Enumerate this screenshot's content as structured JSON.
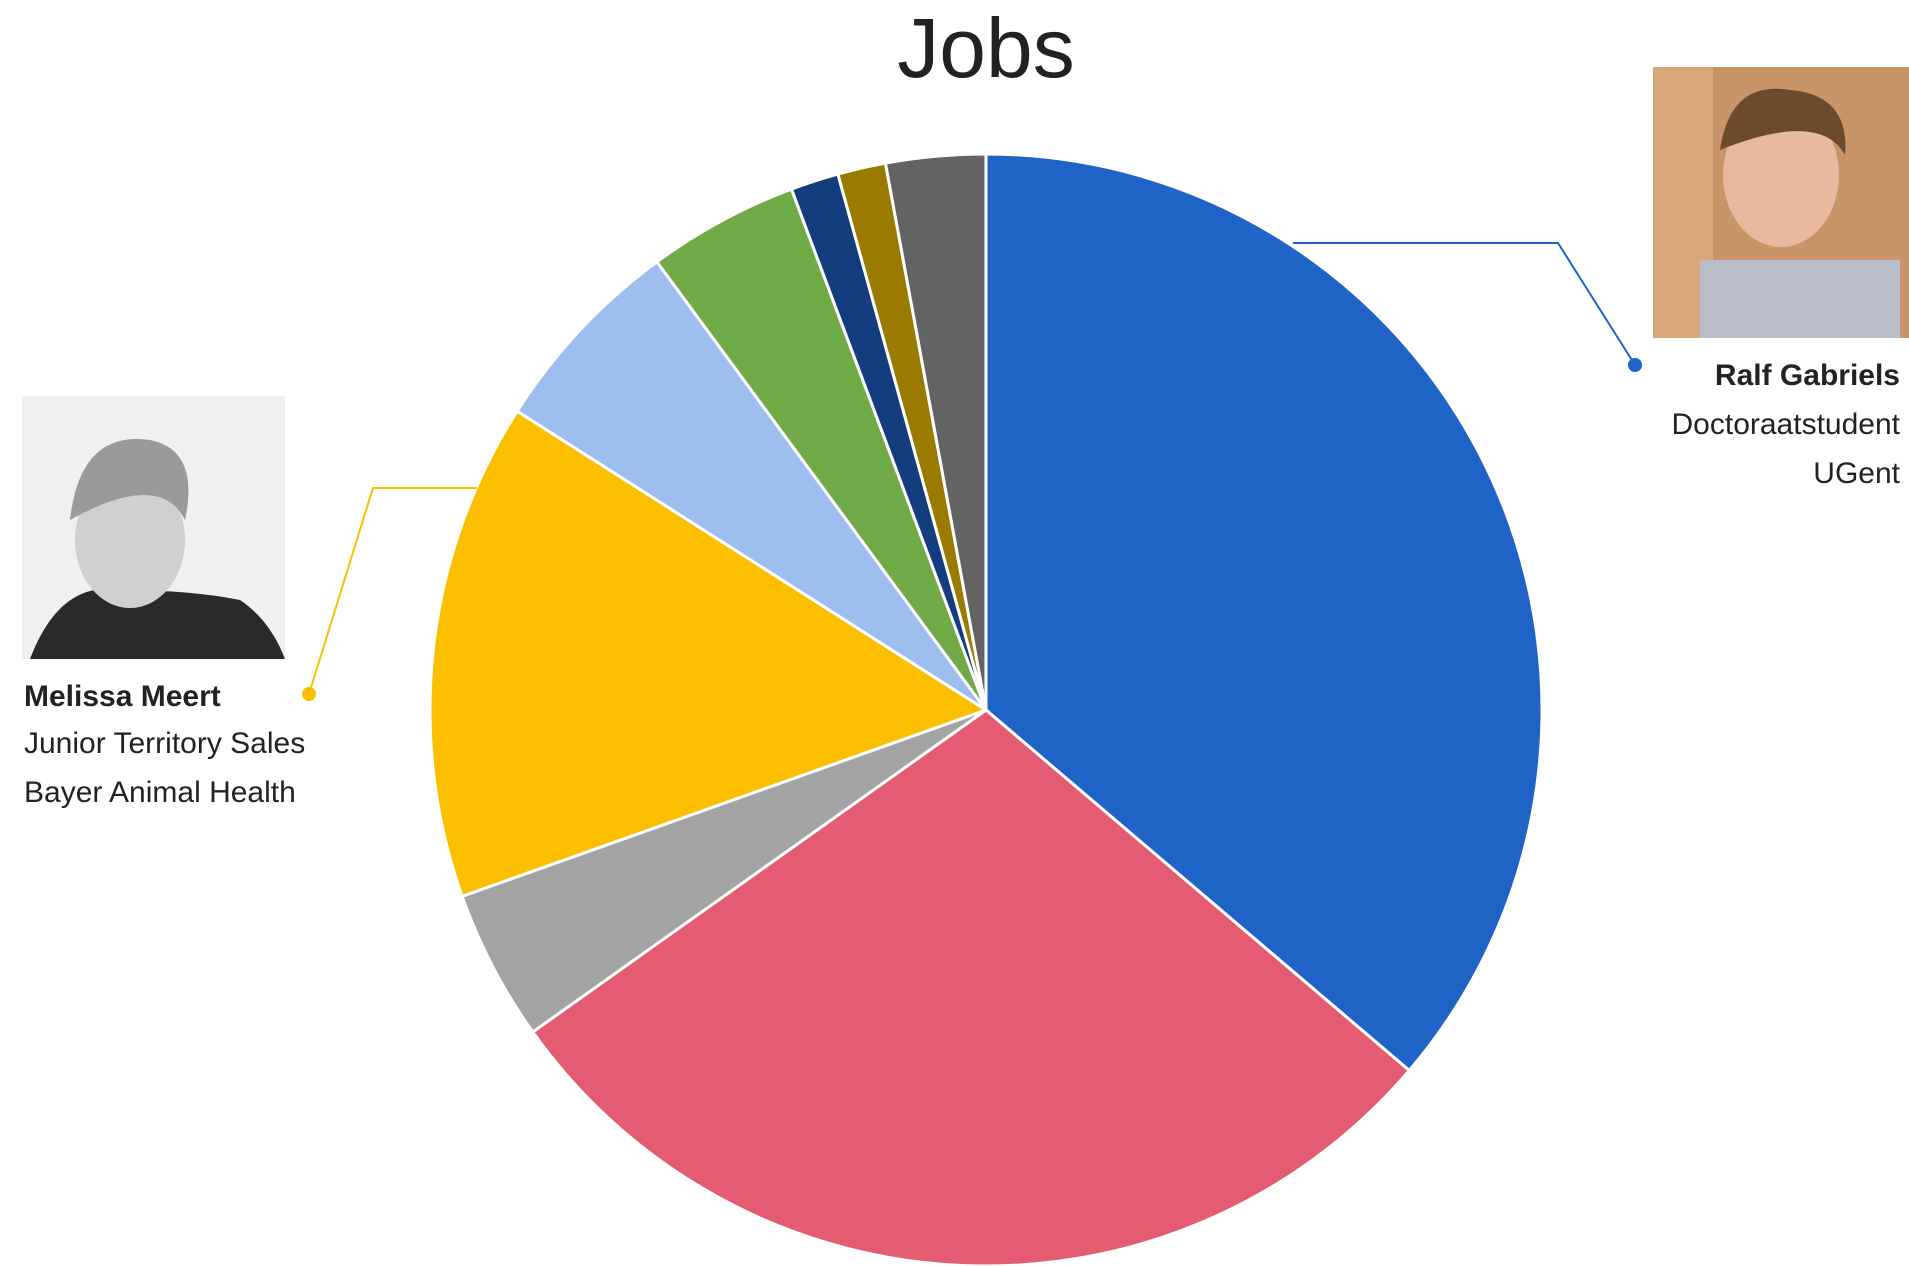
{
  "chart_data": {
    "type": "pie",
    "title": "Jobs",
    "values": [
      36.3,
      29,
      4.4,
      14.5,
      5.9,
      4.4,
      1.4,
      1.4,
      2.9
    ],
    "colors": [
      "#1f63c6",
      "#e45c72",
      "#a3a3a3",
      "#fbbf00",
      "#9dbdee",
      "#70aa47",
      "#133d7c",
      "#9b7a00",
      "#636363"
    ],
    "annotations": [
      {
        "name": "Ralf Gabriels",
        "role": "Doctoraatstudent",
        "organisation": "UGent",
        "color": "#1f63c6"
      },
      {
        "name": "Melissa Meert",
        "role": "Junior Territory Sales",
        "organisation": "Bayer Animal Health",
        "color": "#fbbf00"
      }
    ]
  }
}
